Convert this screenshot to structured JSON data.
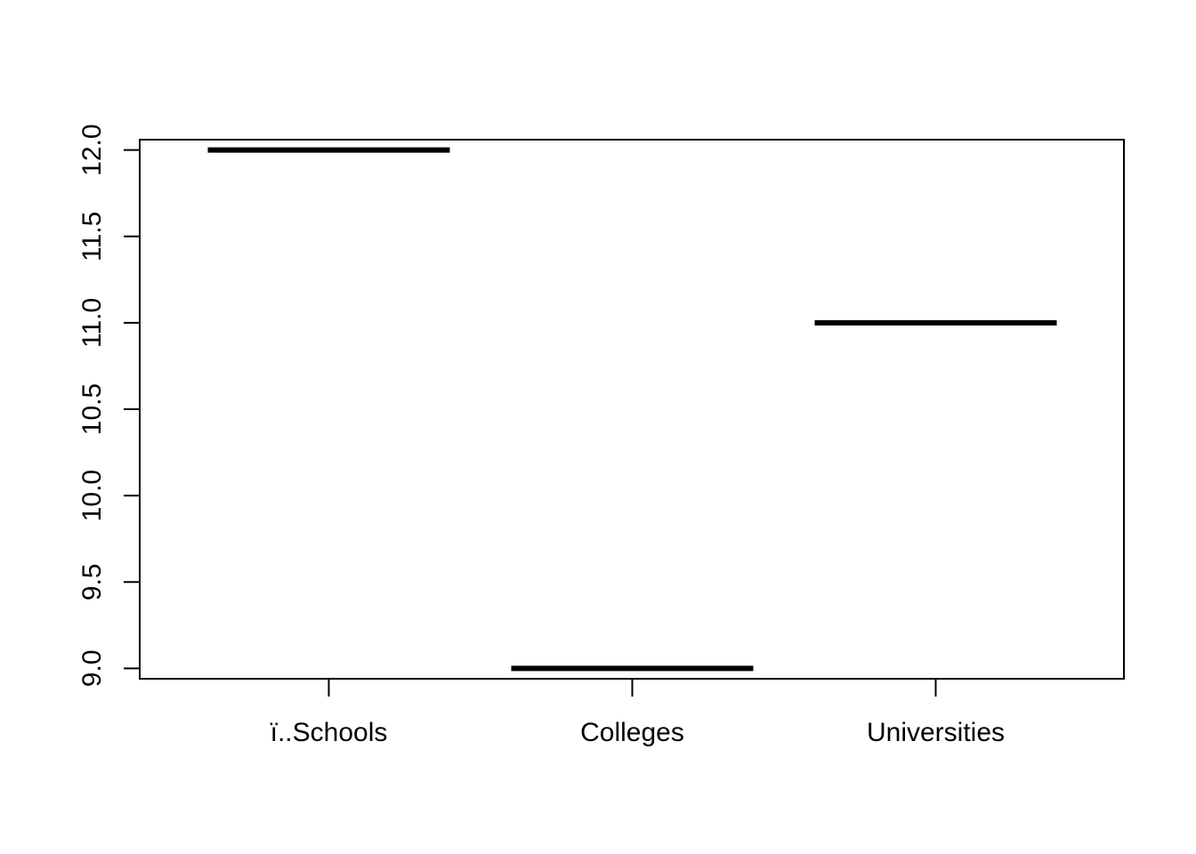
{
  "chart_data": {
    "type": "boxplot",
    "categories": [
      "ï..Schools",
      "Colleges",
      "Universities"
    ],
    "values": [
      12,
      9,
      11
    ],
    "yticks": [
      {
        "value": 9.0,
        "label": "9.0"
      },
      {
        "value": 9.5,
        "label": "9.5"
      },
      {
        "value": 10.0,
        "label": "10.0"
      },
      {
        "value": 10.5,
        "label": "10.5"
      },
      {
        "value": 11.0,
        "label": "11.0"
      },
      {
        "value": 11.5,
        "label": "11.5"
      },
      {
        "value": 12.0,
        "label": "12.0"
      }
    ],
    "ylim": [
      8.94,
      12.06
    ],
    "title": "",
    "xlabel": "",
    "ylabel": "",
    "grid": false,
    "colors": {
      "stroke": "#000000",
      "background": "#ffffff"
    }
  }
}
